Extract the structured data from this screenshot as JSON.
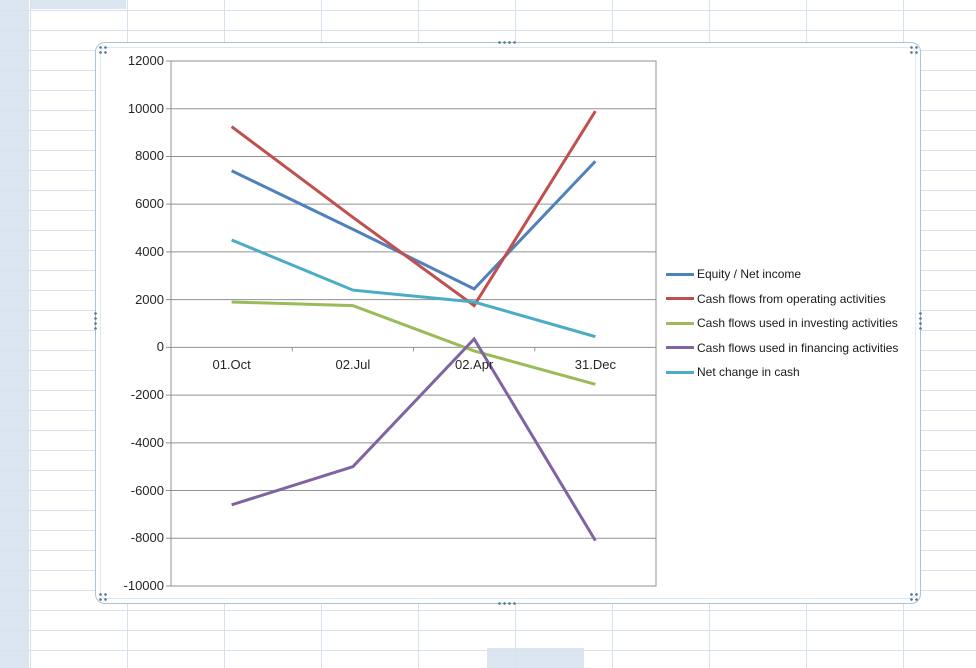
{
  "worksheet": {
    "gridline_color": "#d7e2ee",
    "cell_fill_color": "#dce6f1"
  },
  "chart": {
    "background": "#ffffff",
    "gridline_color": "#919191",
    "axis_text_color": "#262626",
    "selection_frame_color": "#a9c3d7"
  },
  "chart_data": {
    "type": "line",
    "title": "",
    "xlabel": "",
    "ylabel": "",
    "categories": [
      "01.Oct",
      "02.Jul",
      "02.Apr",
      "31.Dec"
    ],
    "series": [
      {
        "name": "Equity / Net income",
        "color": "#4F81BD",
        "values": [
          7400,
          4950,
          2450,
          7800
        ]
      },
      {
        "name": "Cash flows from operating activities",
        "color": "#C0504D",
        "values": [
          9250,
          5450,
          1750,
          9900
        ]
      },
      {
        "name": "Cash flows used in investing activities",
        "color": "#9BBB59",
        "values": [
          1900,
          1750,
          -150,
          -1550
        ]
      },
      {
        "name": "Cash flows used in financing activities",
        "color": "#8064A2",
        "values": [
          -6600,
          -5000,
          350,
          -8100
        ]
      },
      {
        "name": "Net change in cash",
        "color": "#4BACC6",
        "values": [
          4500,
          2400,
          1900,
          450
        ]
      }
    ],
    "ylim": [
      -10000,
      12000
    ],
    "y_step": 2000,
    "y_ticks": [
      12000,
      10000,
      8000,
      6000,
      4000,
      2000,
      0,
      -2000,
      -4000,
      -6000,
      -8000,
      -10000
    ],
    "grid": true,
    "legend_position": "right"
  }
}
